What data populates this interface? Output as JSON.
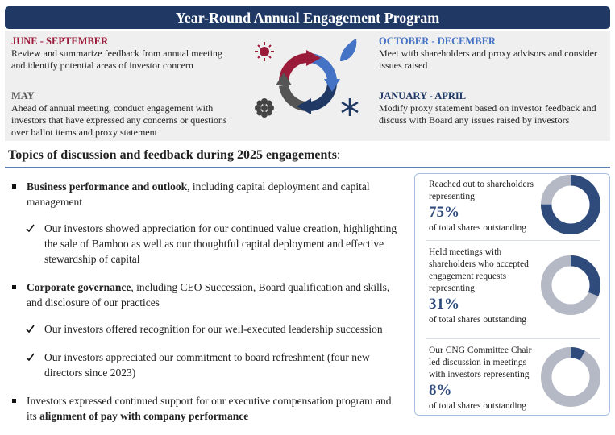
{
  "header": {
    "title": "Year-Round Annual Engagement Program"
  },
  "seasons": [
    {
      "label": "JUNE - SEPTEMBER",
      "text": "Review and summarize feedback from annual meeting and identify potential areas of investor concern",
      "color": "#9b1b3a"
    },
    {
      "label": "MAY",
      "text": "Ahead of annual meeting, conduct engagement with investors that have expressed any concerns or questions over ballot items and proxy statement",
      "color": "#595959"
    },
    {
      "label": "OCTOBER - DECEMBER",
      "text": "Meet with shareholders and proxy advisors and consider issues raised",
      "color": "#4472c4"
    },
    {
      "label": "JANUARY - APRIL",
      "text": "Modify proxy statement based on investor feedback and discuss with Board any issues raised by investors",
      "color": "#1f3864"
    }
  ],
  "topics": {
    "heading": "Topics of discussion and feedback during 2025 engagements",
    "heading_suffix": ":",
    "bullets": [
      {
        "parts": [
          {
            "text": "Business performance and outlook",
            "bold": true
          },
          {
            "text": ", including capital deployment and capital management",
            "bold": false
          }
        ],
        "subs": [
          "Our investors showed appreciation for our continued value creation, highlighting the sale of Bamboo as well as our thoughtful capital deployment and effective stewardship of capital"
        ]
      },
      {
        "parts": [
          {
            "text": "Corporate governance",
            "bold": true
          },
          {
            "text": ", including CEO Succession, Board qualification and skills, and disclosure of our practices",
            "bold": false
          }
        ],
        "subs": [
          "Our investors offered recognition for our well-executed leadership succession",
          "Our investors appreciated our commitment to board refreshment (four new directors since 2023)"
        ]
      },
      {
        "parts": [
          {
            "text": "Investors expressed continued support for our executive compensation program and its ",
            "bold": false
          },
          {
            "text": "alignment of pay with company performance",
            "bold": true
          }
        ],
        "subs": []
      }
    ]
  },
  "stats": [
    {
      "lead": "Reached out to shareholders representing",
      "value": 75,
      "value_label": "75%",
      "tail": "of total shares outstanding"
    },
    {
      "lead": "Held meetings with shareholders who accepted engagement requests representing",
      "value": 31,
      "value_label": "31%",
      "tail": "of total shares outstanding"
    },
    {
      "lead": "Our CNG Committee Chair led discussion in meetings with investors representing",
      "value": 8,
      "value_label": "8%",
      "tail": "of total shares outstanding"
    }
  ]
}
